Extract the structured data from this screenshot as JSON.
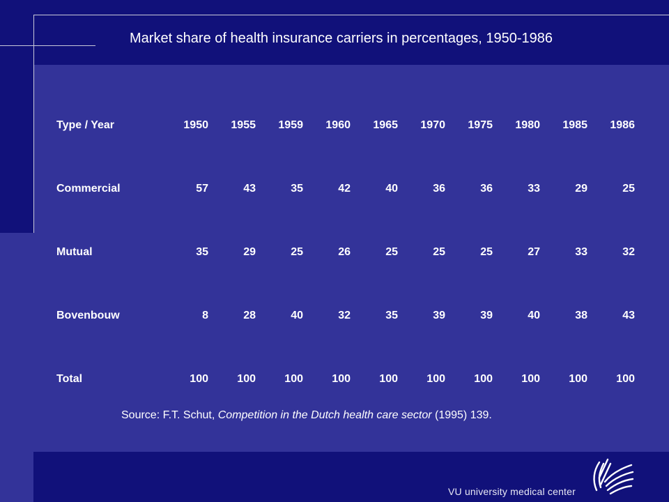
{
  "title": "Market share of health insurance carriers in percentages, 1950-1986",
  "table": {
    "header": {
      "label": "Type / Year",
      "years": [
        "1950",
        "1955",
        "1959",
        "1960",
        "1965",
        "1970",
        "1975",
        "1980",
        "1985",
        "1986"
      ]
    },
    "rows": [
      {
        "label": "Commercial",
        "values": [
          "57",
          "43",
          "35",
          "42",
          "40",
          "36",
          "36",
          "33",
          "29",
          "25"
        ]
      },
      {
        "label": "Mutual",
        "values": [
          "35",
          "29",
          "25",
          "26",
          "25",
          "25",
          "25",
          "27",
          "33",
          "32"
        ]
      },
      {
        "label": "Bovenbouw",
        "values": [
          "8",
          "28",
          "40",
          "32",
          "35",
          "39",
          "39",
          "40",
          "38",
          "43"
        ]
      },
      {
        "label": "Total",
        "values": [
          "100",
          "100",
          "100",
          "100",
          "100",
          "100",
          "100",
          "100",
          "100",
          "100"
        ]
      }
    ]
  },
  "source": {
    "prefix": "Source: F.T. Schut, ",
    "book_title": "Competition in the Dutch health care sector",
    "suffix": " (1995) 139."
  },
  "footer": {
    "institution": "VU university medical center",
    "logo_icon": "vumc-logo-icon"
  },
  "colors": {
    "background": "#333399",
    "dark_bands": "#11117a",
    "text": "#ffffff"
  }
}
